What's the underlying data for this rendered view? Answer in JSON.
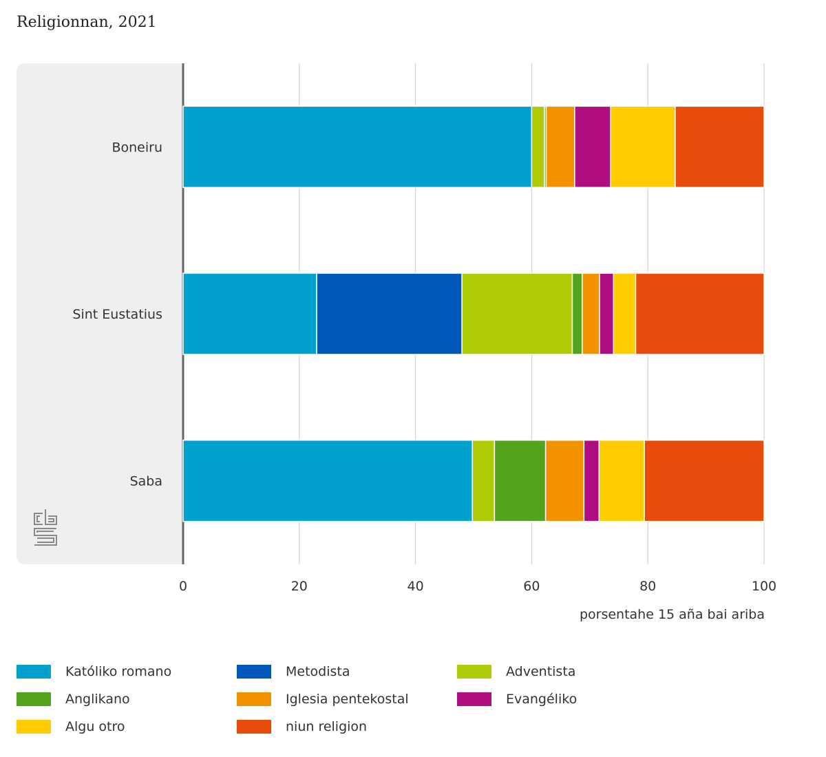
{
  "title": "Religionnan, 2021",
  "logo_text": "cbs",
  "colors": {
    "panel": "#efefef",
    "grid": "#cccccc",
    "axis": "#666666",
    "bar_divider": "#ffffff",
    "logo": "#8a8a8a"
  },
  "chart_data": {
    "type": "bar",
    "orientation": "horizontal",
    "stacked": true,
    "title": "Religionnan, 2021",
    "xlabel": "porsentahe 15 aña bai ariba",
    "ylabel": "",
    "xlim": [
      0,
      100
    ],
    "xticks": [
      "0",
      "20",
      "40",
      "60",
      "80",
      "100"
    ],
    "grid": true,
    "legend_position": "bottom",
    "categories": [
      "Boneiru",
      "Sint Eustatius",
      "Saba"
    ],
    "series": [
      {
        "name": "Katóliko romano",
        "color": "#00a1cd",
        "values": [
          60.0,
          23.0,
          49.8
        ]
      },
      {
        "name": "Metodista",
        "color": "#0058b8",
        "values": [
          0.0,
          25.0,
          0.0
        ]
      },
      {
        "name": "Adventista",
        "color": "#afcb05",
        "values": [
          2.2,
          19.0,
          3.8
        ]
      },
      {
        "name": "Anglikano",
        "color": "#53a31d",
        "values": [
          0.3,
          1.7,
          8.8
        ]
      },
      {
        "name": "Iglesia pentekostal",
        "color": "#f39200",
        "values": [
          4.9,
          3.0,
          6.6
        ]
      },
      {
        "name": "Evangéliko",
        "color": "#af0e80",
        "values": [
          6.2,
          2.4,
          2.6
        ]
      },
      {
        "name": "Algu otro",
        "color": "#ffcc00",
        "values": [
          11.1,
          3.8,
          7.8
        ]
      },
      {
        "name": "niun religion",
        "color": "#e94c0a",
        "values": [
          15.3,
          22.1,
          20.6
        ]
      }
    ]
  }
}
